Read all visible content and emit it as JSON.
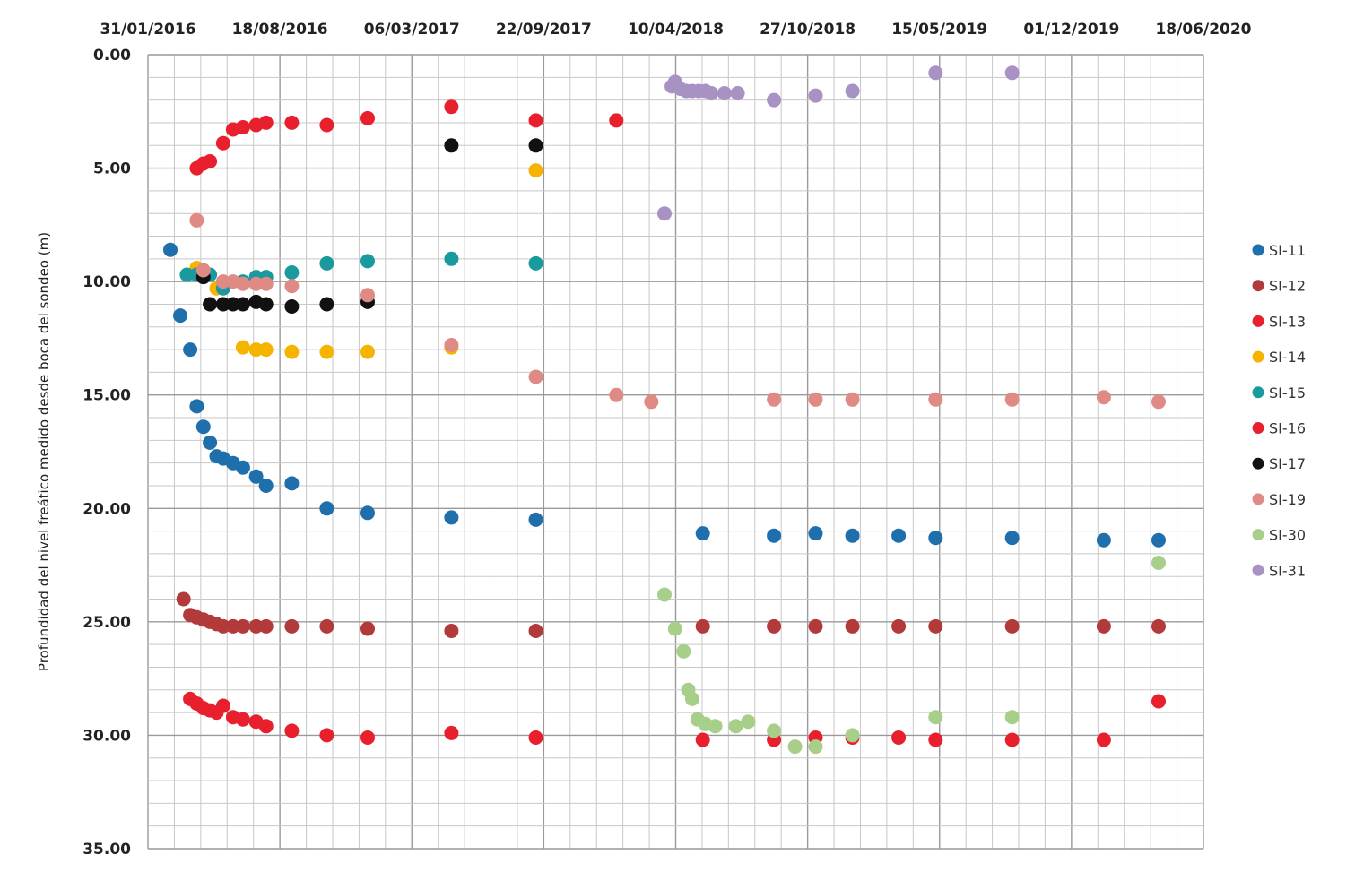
{
  "chart_data": {
    "type": "scatter",
    "title": "",
    "ylabel": "Profundidad del nivel freático medido desde boca del sondeo (m)",
    "xlabel": "",
    "x_axis": {
      "min": "2016-01-31",
      "max": "2020-06-18",
      "position": "top",
      "tick_labels": [
        "31/01/2016",
        "18/08/2016",
        "06/03/2017",
        "22/09/2017",
        "10/04/2018",
        "27/10/2018",
        "15/05/2019",
        "01/12/2019",
        "18/06/2020"
      ]
    },
    "y_axis": {
      "min": 0,
      "max": 35,
      "inverted": true,
      "tick_labels": [
        "0.00",
        "5.00",
        "10.00",
        "15.00",
        "20.00",
        "25.00",
        "30.00",
        "35.00"
      ]
    },
    "grid": true,
    "legend_position": "right",
    "series": [
      {
        "name": "SI-11",
        "color": "#1f6fad",
        "points": [
          [
            "2016-03-05",
            8.6
          ],
          [
            "2016-03-20",
            11.5
          ],
          [
            "2016-04-04",
            13.0
          ],
          [
            "2016-04-14",
            15.5
          ],
          [
            "2016-04-24",
            16.4
          ],
          [
            "2016-05-04",
            17.1
          ],
          [
            "2016-05-14",
            17.7
          ],
          [
            "2016-05-24",
            17.8
          ],
          [
            "2016-06-08",
            18.0
          ],
          [
            "2016-06-23",
            18.2
          ],
          [
            "2016-07-13",
            18.6
          ],
          [
            "2016-07-28",
            19.0
          ],
          [
            "2016-09-05",
            18.9
          ],
          [
            "2016-10-28",
            20.0
          ],
          [
            "2016-12-29",
            20.2
          ],
          [
            "2017-05-05",
            20.4
          ],
          [
            "2017-09-10",
            20.5
          ],
          [
            "2018-05-21",
            21.1
          ],
          [
            "2018-09-06",
            21.2
          ],
          [
            "2018-11-08",
            21.1
          ],
          [
            "2019-01-03",
            21.2
          ],
          [
            "2019-03-14",
            21.2
          ],
          [
            "2019-05-09",
            21.3
          ],
          [
            "2019-09-02",
            21.3
          ],
          [
            "2020-01-19",
            21.4
          ],
          [
            "2020-04-11",
            21.4
          ]
        ]
      },
      {
        "name": "SI-12",
        "color": "#b23a3a",
        "points": [
          [
            "2016-03-25",
            24.0
          ],
          [
            "2016-04-04",
            24.7
          ],
          [
            "2016-04-14",
            24.8
          ],
          [
            "2016-04-24",
            24.9
          ],
          [
            "2016-05-04",
            25.0
          ],
          [
            "2016-05-14",
            25.1
          ],
          [
            "2016-05-24",
            25.2
          ],
          [
            "2016-06-08",
            25.2
          ],
          [
            "2016-06-23",
            25.2
          ],
          [
            "2016-07-13",
            25.2
          ],
          [
            "2016-07-28",
            25.2
          ],
          [
            "2016-09-05",
            25.2
          ],
          [
            "2016-10-28",
            25.2
          ],
          [
            "2016-12-29",
            25.3
          ],
          [
            "2017-05-05",
            25.4
          ],
          [
            "2017-09-10",
            25.4
          ],
          [
            "2018-05-21",
            25.2
          ],
          [
            "2018-09-06",
            25.2
          ],
          [
            "2018-11-08",
            25.2
          ],
          [
            "2019-01-03",
            25.2
          ],
          [
            "2019-03-14",
            25.2
          ],
          [
            "2019-05-09",
            25.2
          ],
          [
            "2019-09-02",
            25.2
          ],
          [
            "2020-01-19",
            25.2
          ],
          [
            "2020-04-11",
            25.2
          ]
        ]
      },
      {
        "name": "SI-13",
        "color": "#e8202e",
        "points": [
          [
            "2016-04-04",
            28.4
          ],
          [
            "2016-04-14",
            28.6
          ],
          [
            "2016-04-24",
            28.8
          ],
          [
            "2016-05-04",
            28.9
          ],
          [
            "2016-05-14",
            29.0
          ],
          [
            "2016-05-24",
            28.7
          ],
          [
            "2016-06-08",
            29.2
          ],
          [
            "2016-06-23",
            29.3
          ],
          [
            "2016-07-13",
            29.4
          ],
          [
            "2016-07-28",
            29.6
          ],
          [
            "2016-09-05",
            29.8
          ],
          [
            "2016-10-28",
            30.0
          ],
          [
            "2016-12-29",
            30.1
          ],
          [
            "2017-05-05",
            29.9
          ],
          [
            "2017-09-10",
            30.1
          ],
          [
            "2018-05-21",
            30.2
          ],
          [
            "2018-09-06",
            30.2
          ],
          [
            "2018-11-08",
            30.1
          ],
          [
            "2019-01-03",
            30.1
          ],
          [
            "2019-03-14",
            30.1
          ],
          [
            "2019-05-09",
            30.2
          ],
          [
            "2019-09-02",
            30.2
          ],
          [
            "2020-01-19",
            30.2
          ],
          [
            "2020-04-11",
            28.5
          ]
        ]
      },
      {
        "name": "SI-14",
        "color": "#f5b400",
        "points": [
          [
            "2016-04-14",
            9.4
          ],
          [
            "2016-05-14",
            10.3
          ],
          [
            "2016-06-23",
            12.9
          ],
          [
            "2016-07-13",
            13.0
          ],
          [
            "2016-07-28",
            13.0
          ],
          [
            "2016-09-05",
            13.1
          ],
          [
            "2016-10-28",
            13.1
          ],
          [
            "2016-12-29",
            13.1
          ],
          [
            "2017-05-05",
            12.9
          ],
          [
            "2017-09-10",
            5.1
          ]
        ]
      },
      {
        "name": "SI-15",
        "color": "#1a9a9e",
        "points": [
          [
            "2016-03-30",
            9.7
          ],
          [
            "2016-04-14",
            9.7
          ],
          [
            "2016-05-04",
            9.7
          ],
          [
            "2016-05-24",
            10.3
          ],
          [
            "2016-06-23",
            10.0
          ],
          [
            "2016-07-13",
            9.8
          ],
          [
            "2016-07-28",
            9.8
          ],
          [
            "2016-09-05",
            9.6
          ],
          [
            "2016-10-28",
            9.2
          ],
          [
            "2016-12-29",
            9.1
          ],
          [
            "2017-05-05",
            9.0
          ],
          [
            "2017-09-10",
            9.2
          ]
        ]
      },
      {
        "name": "SI-16",
        "color": "#e8202e",
        "points": [
          [
            "2016-04-14",
            5.0
          ],
          [
            "2016-04-24",
            4.8
          ],
          [
            "2016-05-04",
            4.7
          ],
          [
            "2016-05-24",
            3.9
          ],
          [
            "2016-06-08",
            3.3
          ],
          [
            "2016-06-23",
            3.2
          ],
          [
            "2016-07-13",
            3.1
          ],
          [
            "2016-07-28",
            3.0
          ],
          [
            "2016-09-05",
            3.0
          ],
          [
            "2016-10-28",
            3.1
          ],
          [
            "2016-12-29",
            2.8
          ],
          [
            "2017-05-05",
            2.3
          ],
          [
            "2017-09-10",
            2.9
          ],
          [
            "2018-01-10",
            2.9
          ]
        ]
      },
      {
        "name": "SI-17",
        "color": "#111111",
        "points": [
          [
            "2016-04-24",
            9.8
          ],
          [
            "2016-05-04",
            11.0
          ],
          [
            "2016-05-24",
            11.0
          ],
          [
            "2016-06-08",
            11.0
          ],
          [
            "2016-06-23",
            11.0
          ],
          [
            "2016-07-13",
            10.9
          ],
          [
            "2016-07-28",
            11.0
          ],
          [
            "2016-09-05",
            11.1
          ],
          [
            "2016-10-28",
            11.0
          ],
          [
            "2016-12-29",
            10.9
          ],
          [
            "2017-05-05",
            4.0
          ],
          [
            "2017-09-10",
            4.0
          ]
        ]
      },
      {
        "name": "SI-19",
        "color": "#e08a86",
        "points": [
          [
            "2016-04-14",
            7.3
          ],
          [
            "2016-04-24",
            9.5
          ],
          [
            "2016-05-24",
            10.0
          ],
          [
            "2016-06-08",
            10.0
          ],
          [
            "2016-06-23",
            10.1
          ],
          [
            "2016-07-13",
            10.1
          ],
          [
            "2016-07-28",
            10.1
          ],
          [
            "2016-09-05",
            10.2
          ],
          [
            "2016-12-29",
            10.6
          ],
          [
            "2017-05-05",
            12.8
          ],
          [
            "2017-09-10",
            14.2
          ],
          [
            "2018-01-10",
            15.0
          ],
          [
            "2018-03-04",
            15.3
          ],
          [
            "2018-09-06",
            15.2
          ],
          [
            "2018-11-08",
            15.2
          ],
          [
            "2019-01-03",
            15.2
          ],
          [
            "2019-05-09",
            15.2
          ],
          [
            "2019-09-02",
            15.2
          ],
          [
            "2020-01-19",
            15.1
          ],
          [
            "2020-04-11",
            15.3
          ]
        ]
      },
      {
        "name": "SI-30",
        "color": "#a8cf8a",
        "points": [
          [
            "2018-03-24",
            23.8
          ],
          [
            "2018-04-09",
            25.3
          ],
          [
            "2018-04-22",
            26.3
          ],
          [
            "2018-04-29",
            28.0
          ],
          [
            "2018-05-05",
            28.4
          ],
          [
            "2018-05-13",
            29.3
          ],
          [
            "2018-05-25",
            29.5
          ],
          [
            "2018-06-09",
            29.6
          ],
          [
            "2018-07-10",
            29.6
          ],
          [
            "2018-07-29",
            29.4
          ],
          [
            "2018-09-06",
            29.8
          ],
          [
            "2018-10-08",
            30.5
          ],
          [
            "2018-11-08",
            30.5
          ],
          [
            "2019-01-03",
            30.0
          ],
          [
            "2019-05-09",
            29.2
          ],
          [
            "2019-09-02",
            29.2
          ],
          [
            "2020-04-11",
            22.4
          ]
        ]
      },
      {
        "name": "SI-31",
        "color": "#a892c4",
        "points": [
          [
            "2018-03-24",
            7.0
          ],
          [
            "2018-04-04",
            1.4
          ],
          [
            "2018-04-09",
            1.2
          ],
          [
            "2018-04-17",
            1.5
          ],
          [
            "2018-04-26",
            1.6
          ],
          [
            "2018-05-05",
            1.6
          ],
          [
            "2018-05-15",
            1.6
          ],
          [
            "2018-05-25",
            1.6
          ],
          [
            "2018-06-03",
            1.7
          ],
          [
            "2018-06-23",
            1.7
          ],
          [
            "2018-07-13",
            1.7
          ],
          [
            "2018-09-06",
            2.0
          ],
          [
            "2018-11-08",
            1.8
          ],
          [
            "2019-01-03",
            1.6
          ],
          [
            "2019-05-09",
            0.8
          ],
          [
            "2019-09-02",
            0.8
          ]
        ]
      }
    ]
  }
}
